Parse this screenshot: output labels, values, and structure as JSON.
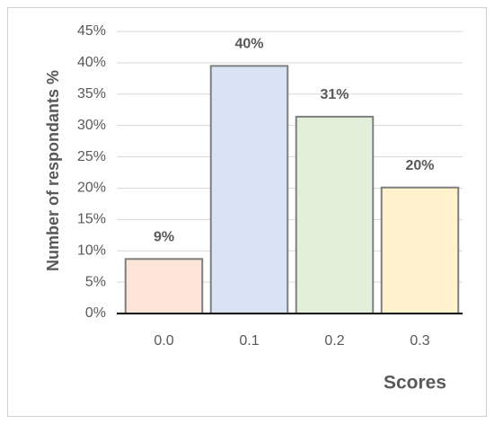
{
  "chart_data": {
    "type": "bar",
    "categories": [
      "0.0",
      "0.1",
      "0.2",
      "0.3"
    ],
    "values": [
      8.7,
      39.5,
      31.4,
      20.1
    ],
    "value_labels": [
      "9%",
      "40%",
      "31%",
      "20%"
    ],
    "colors": [
      "#fce4d6",
      "#dae3f3",
      "#e2f0d9",
      "#fff2cc"
    ],
    "x_label": "Scores",
    "y_label": "Number of respondants %",
    "ylim": [
      0,
      45
    ],
    "yticks": [
      {
        "value": 0,
        "label": "0%"
      },
      {
        "value": 5,
        "label": "5%"
      },
      {
        "value": 10,
        "label": "10%"
      },
      {
        "value": 15,
        "label": "15%"
      },
      {
        "value": 20,
        "label": "20%"
      },
      {
        "value": 25,
        "label": "25%"
      },
      {
        "value": 30,
        "label": "30%"
      },
      {
        "value": 35,
        "label": "35%"
      },
      {
        "value": 40,
        "label": "40%"
      },
      {
        "value": 45,
        "label": "45%"
      }
    ],
    "grid": true
  }
}
